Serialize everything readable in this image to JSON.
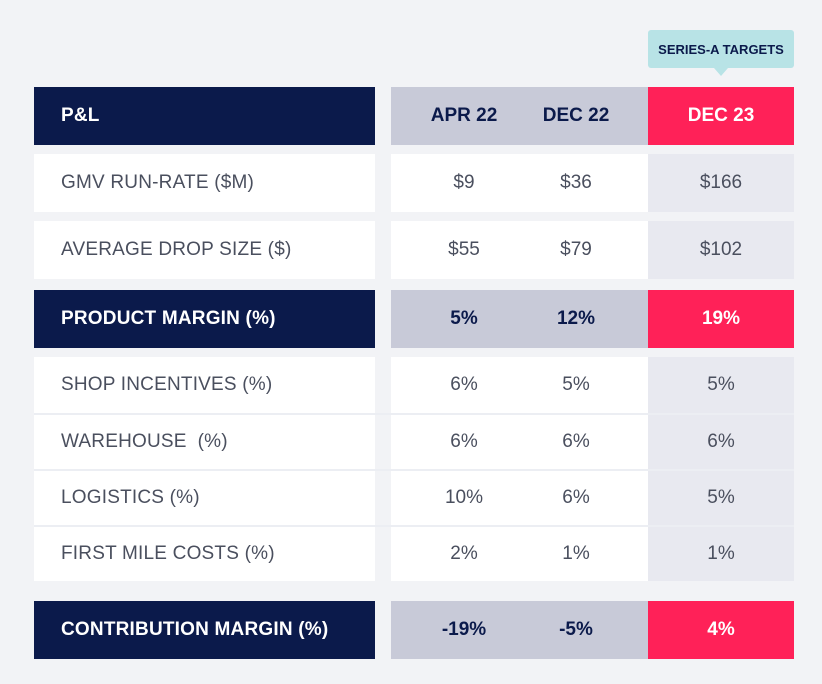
{
  "badge": "SERIES-A TARGETS",
  "columns": [
    "APR 22",
    "DEC 22",
    "DEC 23"
  ],
  "header_label": "P&L",
  "rows": [
    {
      "label": "GMV RUN-RATE ($M)",
      "values": [
        "$9",
        "$36",
        "$166"
      ]
    },
    {
      "label": "AVERAGE DROP SIZE ($)",
      "values": [
        "$55",
        "$79",
        "$102"
      ]
    },
    {
      "label": "PRODUCT MARGIN (%)",
      "values": [
        "5%",
        "12%",
        "19%"
      ]
    },
    {
      "label": "SHOP INCENTIVES (%)",
      "values": [
        "6%",
        "5%",
        "5%"
      ]
    },
    {
      "label": "WAREHOUSE  (%)",
      "values": [
        "6%",
        "6%",
        "6%"
      ]
    },
    {
      "label": "LOGISTICS (%)",
      "values": [
        "10%",
        "6%",
        "5%"
      ]
    },
    {
      "label": "FIRST MILE COSTS (%)",
      "values": [
        "2%",
        "1%",
        "1%"
      ]
    },
    {
      "label": "CONTRIBUTION MARGIN (%)",
      "values": [
        "-19%",
        "-5%",
        "4%"
      ]
    }
  ],
  "colors": {
    "navy": "#0b1a4b",
    "pink": "#ff2158",
    "teal": "#b8e3e6",
    "gray": "#c8cad8"
  }
}
